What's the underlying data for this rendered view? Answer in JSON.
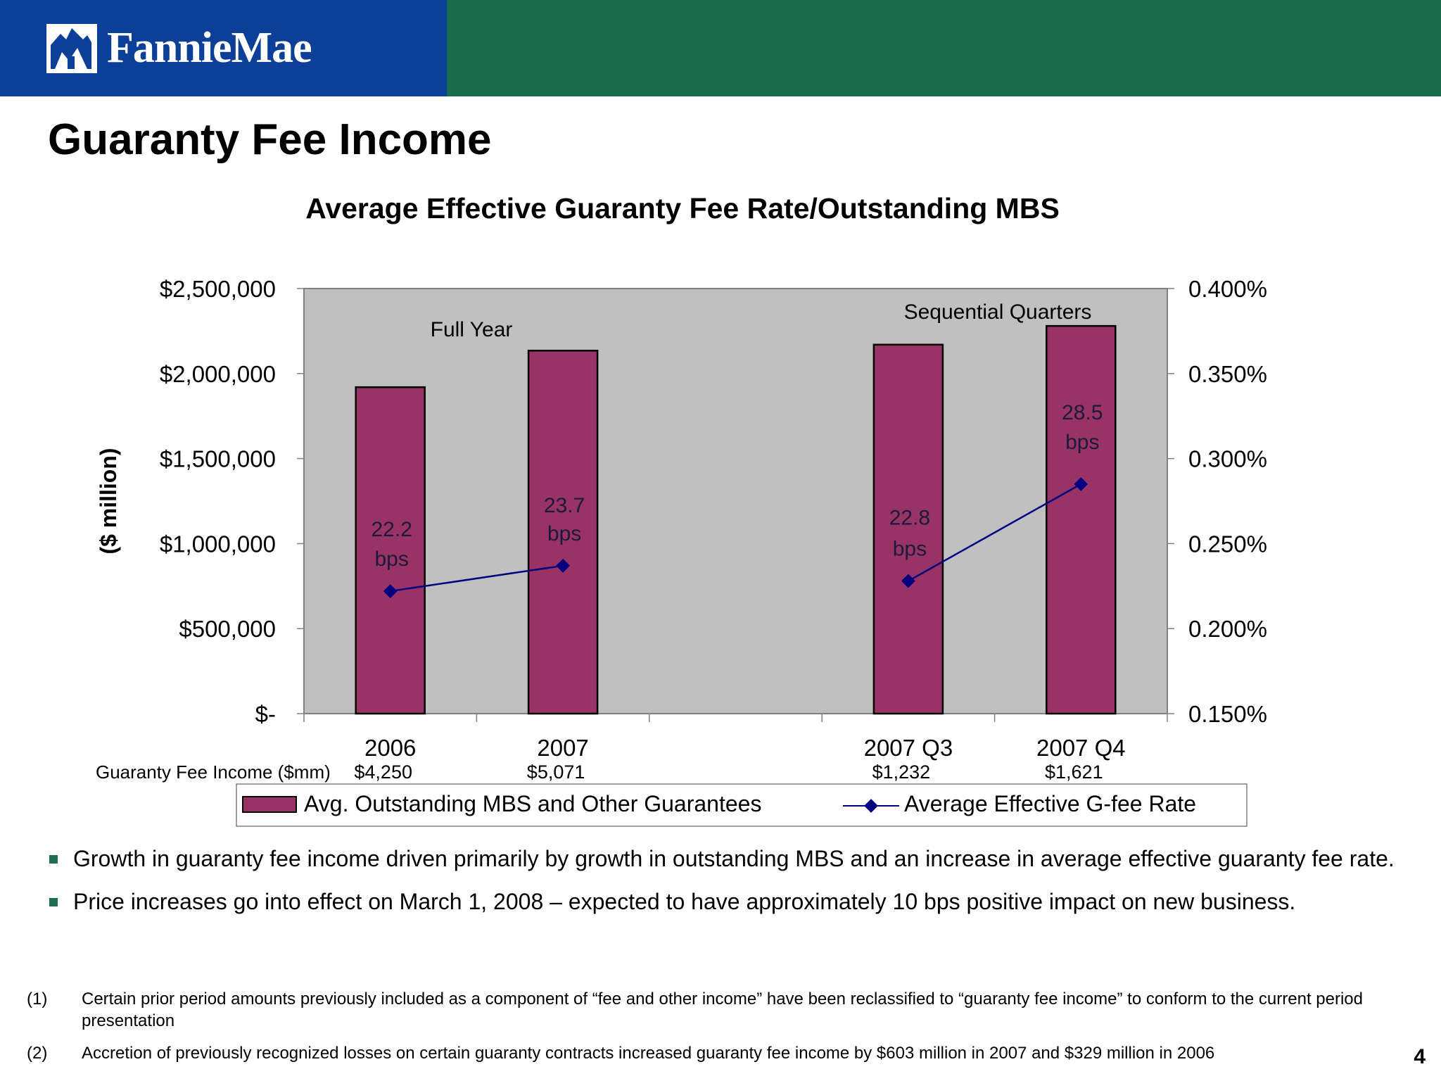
{
  "header": {
    "logo_text": "FannieMae",
    "colors": {
      "blue": "#0c3f98",
      "green": "#196b4e"
    }
  },
  "page_title": "Guaranty Fee Income",
  "chart_data": {
    "type": "bar",
    "title": "Average Effective Guaranty Fee Rate/Outstanding MBS",
    "ylabel": "($ million)",
    "categories": [
      "2006",
      "2007",
      "",
      "2007 Q3",
      "2007 Q4"
    ],
    "ylim": [
      0,
      2500000
    ],
    "y_ticks": [
      "$-",
      "$500,000",
      "$1,000,000",
      "$1,500,000",
      "$2,000,000",
      "$2,500,000"
    ],
    "y2lim": [
      0.15,
      0.4
    ],
    "y2_ticks": [
      "0.150%",
      "0.200%",
      "0.250%",
      "0.300%",
      "0.350%",
      "0.400%"
    ],
    "grid": false,
    "plot_background": "#c0c0c0",
    "series": [
      {
        "name": "Avg. Outstanding MBS and Other Guarantees",
        "type": "bar",
        "axis": "left",
        "color": "#993366",
        "values": [
          1920000,
          2135000,
          null,
          2170000,
          2280000
        ]
      },
      {
        "name": "Average Effective G-fee Rate",
        "type": "line",
        "axis": "right",
        "color": "#000080",
        "values": [
          0.222,
          0.237,
          null,
          0.228,
          0.285
        ],
        "data_labels": [
          [
            "22.2",
            "bps"
          ],
          [
            "23.7",
            "bps"
          ],
          null,
          [
            "22.8",
            "bps"
          ],
          [
            "28.5",
            "bps"
          ]
        ]
      }
    ],
    "annotations": [
      "Full Year",
      "Sequential Quarters"
    ],
    "table_row": {
      "label": "Guaranty Fee Income ($mm)",
      "values": [
        "$4,250",
        "$5,071",
        "",
        "$1,232",
        "$1,621"
      ]
    },
    "legend_position": "bottom"
  },
  "bullets": [
    "Growth in guaranty fee income driven primarily by growth in outstanding MBS and an increase in average effective guaranty fee rate.",
    "Price increases go into effect on March 1, 2008 – expected to have approximately 10 bps positive impact on new business."
  ],
  "footnotes": [
    {
      "num": "(1)",
      "text": "Certain prior period amounts previously included as a component of “fee and other income” have been reclassified to “guaranty fee income” to conform to the current period presentation"
    },
    {
      "num": "(2)",
      "text": "Accretion of previously recognized losses on certain guaranty contracts increased guaranty fee income by $603 million in 2007 and $329 million in 2006"
    }
  ],
  "page_number": "4"
}
